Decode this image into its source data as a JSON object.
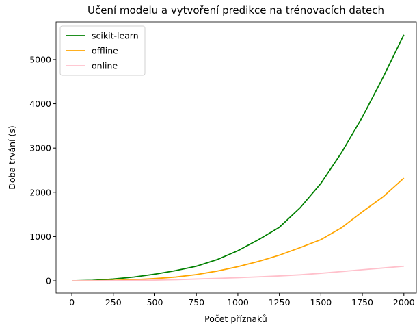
{
  "chart_data": {
    "type": "line",
    "title": "Učení modelu a vytvoření predikce na trénovacích datech",
    "x_label": "Počet příznaků",
    "y_label": "Doba trvání (s)",
    "x": [
      0,
      125,
      250,
      375,
      500,
      625,
      750,
      875,
      1000,
      1125,
      1250,
      1375,
      1500,
      1625,
      1750,
      1875,
      2000
    ],
    "series": [
      {
        "name": "scikit-learn",
        "color": "#008000",
        "values": [
          0,
          10,
          40,
          85,
          150,
          230,
          330,
          480,
          680,
          930,
          1210,
          1650,
          2200,
          2900,
          3700,
          4600,
          5560
        ]
      },
      {
        "name": "offline",
        "color": "#ffa500",
        "values": [
          0,
          3,
          10,
          25,
          50,
          85,
          140,
          220,
          320,
          440,
          580,
          750,
          930,
          1200,
          1560,
          1900,
          2320
        ]
      },
      {
        "name": "online",
        "color": "#ffc0cb",
        "values": [
          0,
          1,
          3,
          8,
          15,
          25,
          40,
          55,
          70,
          90,
          110,
          135,
          170,
          210,
          250,
          290,
          330
        ]
      }
    ],
    "xlim": [
      -95,
      2075
    ],
    "xticks": [
      0,
      250,
      500,
      750,
      1000,
      1250,
      1500,
      1750,
      2000
    ],
    "ylim": [
      -278,
      5850
    ],
    "yticks": [
      0,
      1000,
      2000,
      3000,
      4000,
      5000
    ],
    "legend": "upper left"
  }
}
